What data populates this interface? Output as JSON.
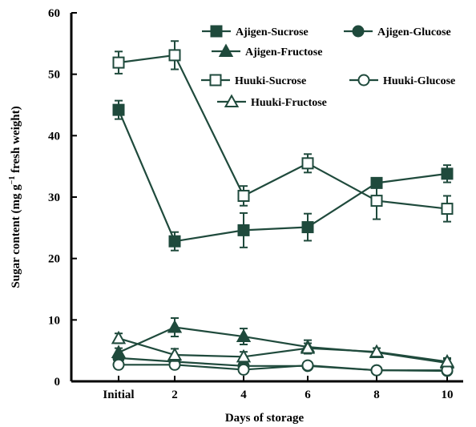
{
  "chart_data": {
    "type": "line",
    "xlabel": "Days of storage",
    "ylabel_main": "Sugar content (mg g",
    "ylabel_sup": "−1",
    "ylabel_tail": " fresh weight)",
    "categories": [
      "Initial",
      "2",
      "4",
      "6",
      "8",
      "10"
    ],
    "ylim": [
      0,
      60
    ],
    "yticks": [
      "0",
      "10",
      "20",
      "30",
      "40",
      "50",
      "60"
    ],
    "grid": false,
    "legend_placement": "top-right",
    "series": [
      {
        "name": "Ajigen-Sucrose",
        "marker": "square-filled",
        "values": [
          44.2,
          22.8,
          24.6,
          25.1,
          32.3,
          33.8
        ],
        "errors": [
          1.5,
          1.5,
          2.8,
          2.2,
          0.8,
          1.4
        ]
      },
      {
        "name": "Ajigen-Glucose",
        "marker": "circle-filled",
        "values": [
          3.8,
          3.2,
          2.5,
          2.5,
          1.8,
          1.7
        ],
        "errors": [
          0.6,
          0.5,
          0.5,
          0.4,
          0.4,
          0.4
        ]
      },
      {
        "name": "Ajigen-Fructose",
        "marker": "triangle-filled",
        "values": [
          4.7,
          8.8,
          7.3,
          5.6,
          4.7,
          3.0
        ],
        "errors": [
          0.7,
          1.5,
          1.3,
          1.1,
          0.7,
          0.6
        ]
      },
      {
        "name": "Huuki-Sucrose",
        "marker": "square-open",
        "values": [
          51.9,
          53.1,
          30.2,
          35.5,
          29.4,
          28.1
        ],
        "errors": [
          1.8,
          2.3,
          1.6,
          1.5,
          3.0,
          2.1
        ]
      },
      {
        "name": "Huuki-Glucose",
        "marker": "circle-open",
        "values": [
          2.7,
          2.7,
          1.9,
          2.6,
          1.8,
          1.8
        ],
        "errors": [
          0.4,
          0.5,
          0.4,
          0.4,
          0.3,
          0.3
        ]
      },
      {
        "name": "Huuki-Fructose",
        "marker": "triangle-open",
        "values": [
          7.0,
          4.3,
          4.0,
          5.4,
          4.8,
          3.2
        ],
        "errors": [
          0.8,
          1.0,
          0.8,
          0.8,
          0.6,
          0.6
        ]
      }
    ],
    "colors": {
      "line": "#1f4a3c",
      "marker": "#1f4a3c",
      "axis": "#000000",
      "background": "#ffffff"
    }
  }
}
